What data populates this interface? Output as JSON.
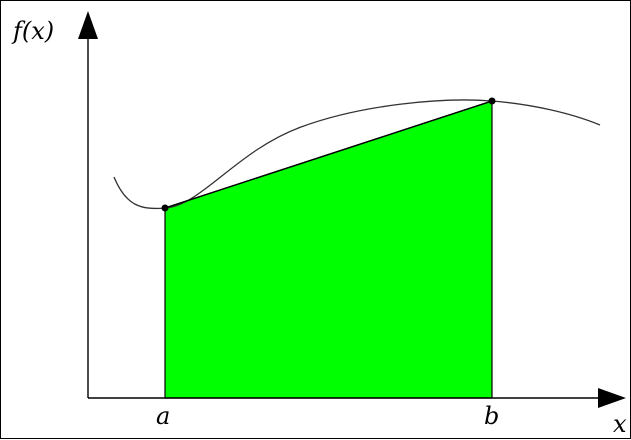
{
  "labels": {
    "y_axis": "f(x)",
    "x_axis": "x",
    "point_a": "a",
    "point_b": "b"
  },
  "colors": {
    "area_fill": "#00ff00",
    "axis": "#000000",
    "curve": "#333333",
    "background": "#ffffff"
  }
}
